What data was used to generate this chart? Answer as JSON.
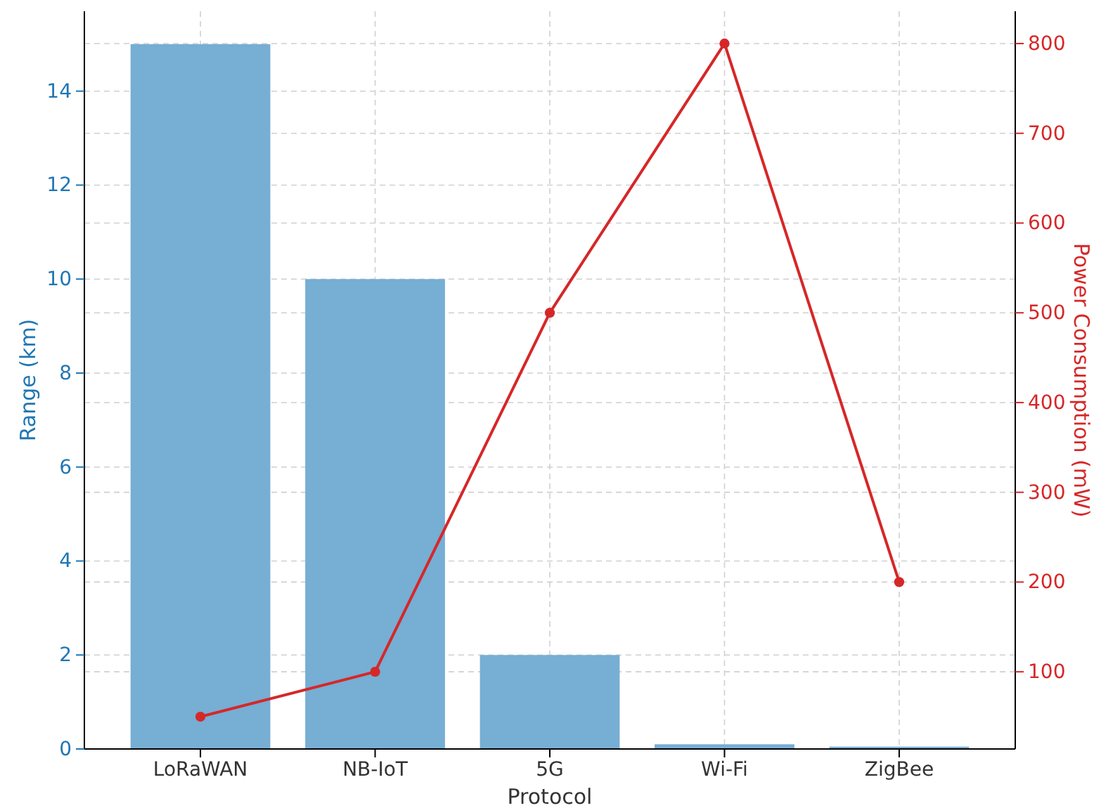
{
  "chart_data": {
    "type": "bar",
    "xlabel": "Protocol",
    "ylabel": "Range (km)",
    "y2label": "Power Consumption (mW)",
    "categories": [
      "LoRaWAN",
      "NB-IoT",
      "5G",
      "Wi-Fi",
      "ZigBee"
    ],
    "series": [
      {
        "color": "#76aed4",
        "values": [
          15,
          10,
          2,
          0.1,
          0.05
        ]
      },
      {
        "type": "line",
        "axis": "y2",
        "color": "#d62728",
        "values": [
          50,
          100,
          500,
          800,
          200
        ]
      }
    ],
    "ylim": [
      0,
      15.7
    ],
    "yticks": [
      0,
      2,
      4,
      6,
      8,
      10,
      12,
      14
    ],
    "y2lim": [
      14,
      836
    ],
    "y2ticks": [
      100,
      200,
      300,
      400,
      500,
      600,
      700,
      800
    ],
    "grid": true,
    "marker": "circle",
    "line_style": "solid"
  }
}
